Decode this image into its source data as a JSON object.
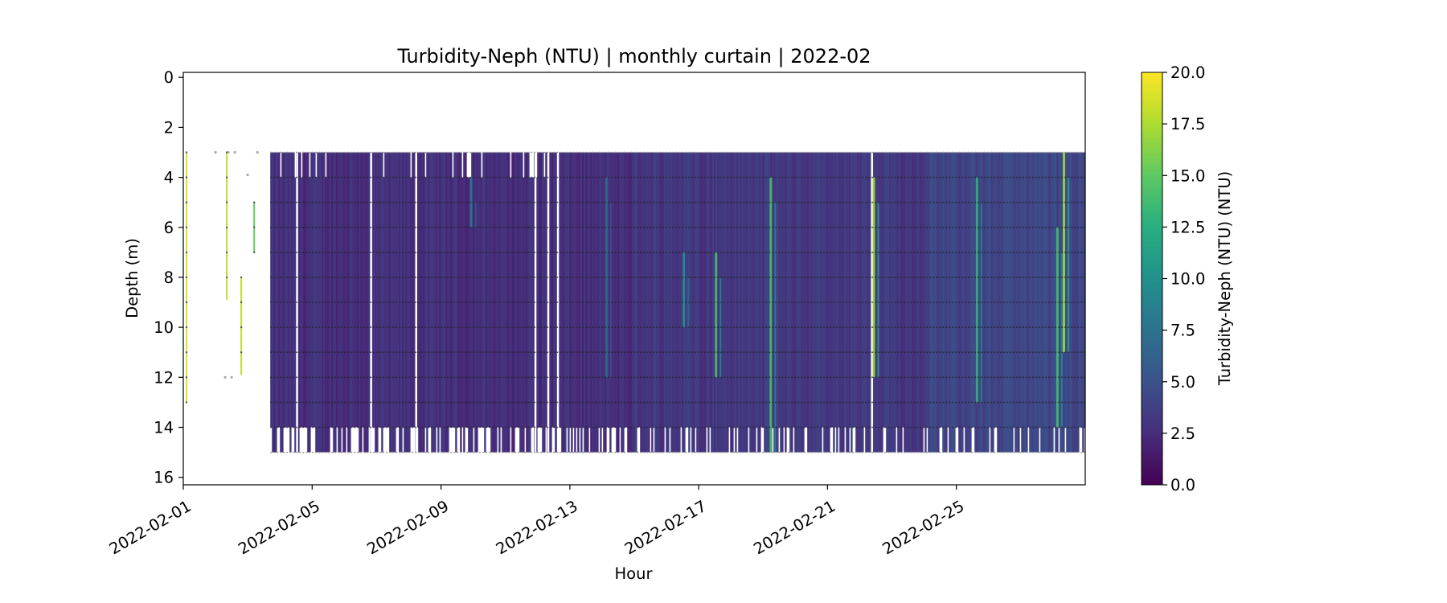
{
  "chart_data": {
    "type": "heatmap",
    "title": "Turbidity-Neph (NTU) | monthly curtain | 2022-02",
    "xlabel": "Hour",
    "ylabel": "Depth (m)",
    "x_range": [
      "2022-02-01",
      "2022-02-29"
    ],
    "y_range": [
      16.3,
      -0.2
    ],
    "y_inverted": true,
    "x_ticks": [
      "2022-02-01",
      "2022-02-05",
      "2022-02-09",
      "2022-02-13",
      "2022-02-17",
      "2022-02-21",
      "2022-02-25"
    ],
    "y_ticks": [
      0,
      2,
      4,
      6,
      8,
      10,
      12,
      14,
      16
    ],
    "grid": false,
    "colormap": "viridis",
    "colorbar": {
      "label": "Turbidity-Neph (NTU) (NTU)",
      "range": [
        0,
        20
      ],
      "ticks": [
        "0.0",
        "2.5",
        "5.0",
        "7.5",
        "10.0",
        "12.5",
        "15.0",
        "17.5",
        "20.0"
      ]
    },
    "background_value": 2.5,
    "curtain": {
      "start": "2022-02-03.7",
      "end": "2022-02-29",
      "top_depth": 3.0,
      "bottom_depth_range": [
        14.0,
        15.0
      ]
    },
    "early_profiles": [
      {
        "day": 1.1,
        "top": 3,
        "bottom": 13,
        "value": 19
      },
      {
        "day": 2.35,
        "top": 3,
        "bottom": 8.9,
        "value": 18
      },
      {
        "day": 2.8,
        "top": 8,
        "bottom": 11.9,
        "value": 18
      },
      {
        "day": 3.2,
        "top": 5,
        "bottom": 7,
        "value": 15
      }
    ],
    "high_streaks": [
      {
        "day": 9.9,
        "top": 4,
        "bottom": 6,
        "value": 8
      },
      {
        "day": 14.1,
        "top": 4,
        "bottom": 12,
        "value": 7
      },
      {
        "day": 16.5,
        "top": 7,
        "bottom": 10,
        "value": 10
      },
      {
        "day": 17.5,
        "top": 7,
        "bottom": 12,
        "value": 14
      },
      {
        "day": 19.2,
        "top": 4,
        "bottom": 15,
        "value": 14
      },
      {
        "day": 22.4,
        "top": 4,
        "bottom": 12,
        "value": 17
      },
      {
        "day": 25.6,
        "top": 4,
        "bottom": 13,
        "value": 13
      },
      {
        "day": 28.1,
        "top": 6,
        "bottom": 14,
        "value": 14
      },
      {
        "day": 28.3,
        "top": 3,
        "bottom": 11,
        "value": 17
      }
    ],
    "sample_depth_rows": [
      4,
      5,
      6,
      7,
      8,
      9,
      10,
      11,
      12,
      13,
      14
    ]
  }
}
